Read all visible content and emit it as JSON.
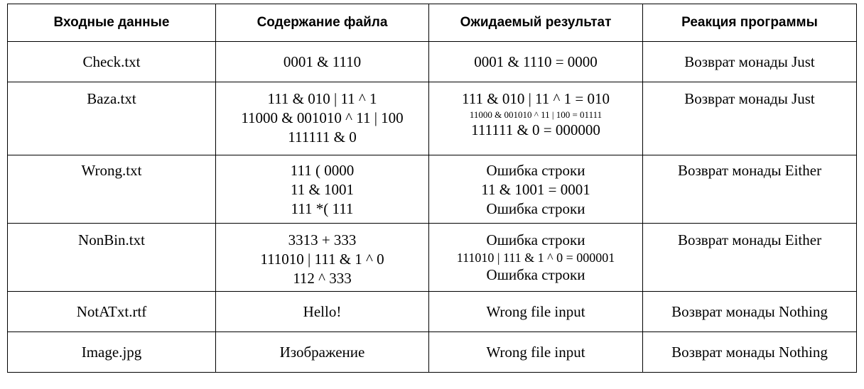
{
  "headers": [
    "Входные данные",
    "Содержание файла",
    "Ожидаемый результат",
    "Реакция программы"
  ],
  "rows": [
    {
      "input": "Check.txt",
      "content": [
        "0001 & 1110"
      ],
      "expected": [
        "0001 & 1110 = 0000"
      ],
      "reaction": "Возврат монады Just"
    },
    {
      "input": "Baza.txt",
      "content": [
        "111 & 010 | 11 ^ 1",
        "11000 & 001010 ^ 11 | 100",
        "111111 & 0"
      ],
      "expected": [
        "111 & 010 | 11 ^ 1 = 010",
        "11000 & 001010 ^ 11 | 100  = 01111",
        "111111 & 0  = 000000"
      ],
      "reaction": "Возврат монады Just"
    },
    {
      "input": "Wrong.txt",
      "content": [
        "111 ( 0000",
        "11 & 1001",
        "111 *( 111"
      ],
      "expected": [
        "Ошибка строки",
        "11 & 1001 = 0001",
        "Ошибка строки"
      ],
      "reaction": "Возврат монады Either"
    },
    {
      "input": "NonBin.txt",
      "content": [
        "3313 + 333",
        "111010 | 111 & 1 ^ 0",
        "112 ^ 333"
      ],
      "expected": [
        "Ошибка строки",
        "111010 | 111 & 1 ^ 0 = 000001",
        "Ошибка строки"
      ],
      "reaction": "Возврат монады Either"
    },
    {
      "input": "NotATxt.rtf",
      "content": [
        "Hello!"
      ],
      "expected": [
        "Wrong file input"
      ],
      "reaction": "Возврат монады Nothing"
    },
    {
      "input": "Image.jpg",
      "content": [
        "Изображение"
      ],
      "expected": [
        "Wrong file input"
      ],
      "reaction": "Возврат монады Nothing"
    }
  ]
}
